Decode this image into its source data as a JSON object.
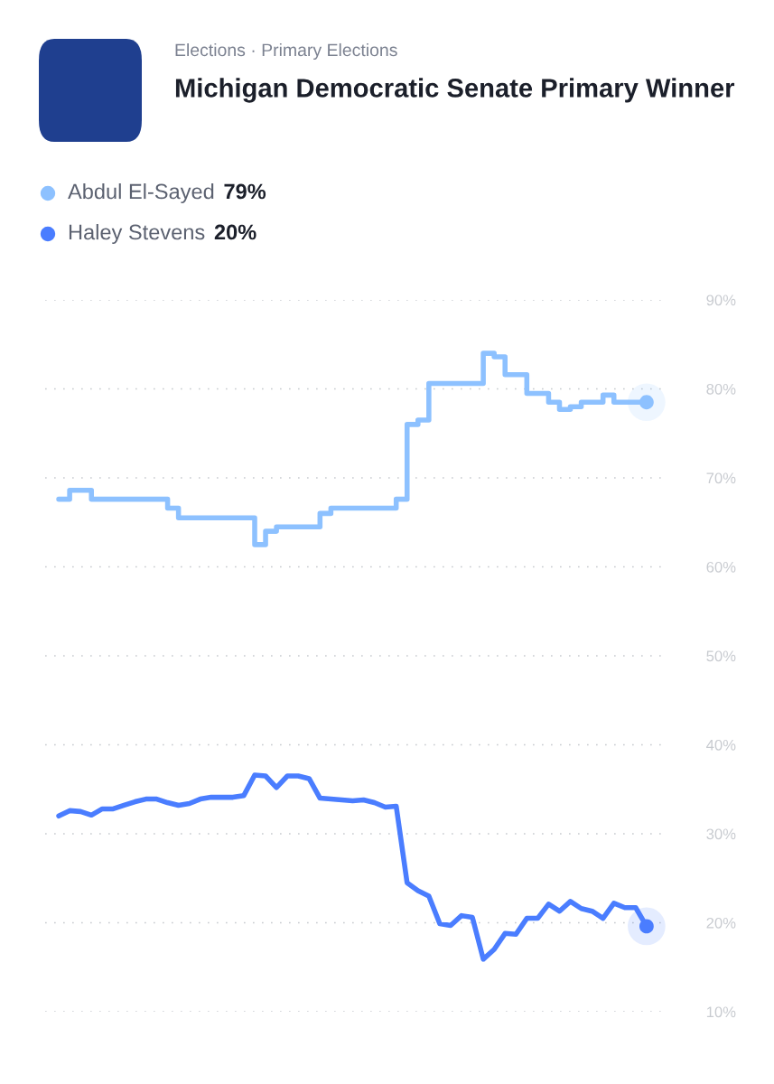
{
  "chart_data": {
    "type": "line",
    "title": "Michigan Democratic Senate Primary Winner",
    "subtitle": "Elections · Primary Elections",
    "categories": [
      null,
      null,
      null,
      null,
      null,
      null,
      null,
      null,
      null,
      null,
      null,
      null,
      null,
      null,
      null,
      null,
      null,
      null,
      null,
      null,
      null,
      null,
      null,
      null,
      null,
      null,
      null,
      null,
      null,
      null,
      null,
      null,
      null,
      null,
      null,
      null,
      null,
      null,
      null,
      null,
      null,
      null,
      null,
      null,
      null,
      null,
      null,
      null,
      null,
      null,
      null,
      null,
      null,
      null,
      null
    ],
    "series": [
      {
        "name": "Abdul El-Sayed",
        "type": "step",
        "color": "#8dc1ff",
        "values": [
          67.6,
          68.6,
          68.6,
          67.6,
          67.6,
          67.6,
          67.6,
          67.6,
          67.6,
          67.6,
          66.6,
          65.5,
          65.5,
          65.5,
          65.5,
          65.5,
          65.5,
          65.5,
          62.5,
          64.0,
          64.5,
          64.5,
          64.5,
          64.5,
          66.0,
          66.6,
          66.6,
          66.6,
          66.6,
          66.6,
          66.6,
          67.6,
          76.0,
          76.5,
          80.6,
          80.6,
          80.6,
          80.6,
          80.6,
          84.0,
          83.6,
          81.6,
          81.6,
          79.5,
          79.5,
          78.5,
          77.7,
          78.0,
          78.5,
          78.5,
          79.3,
          78.5,
          78.5,
          78.5,
          78.5
        ]
      },
      {
        "name": "Haley Stevens",
        "color": "#4a7dff",
        "values": [
          32.0,
          32.6,
          32.5,
          32.1,
          32.8,
          32.8,
          33.2,
          33.6,
          33.9,
          33.9,
          33.5,
          33.2,
          33.4,
          33.9,
          34.1,
          34.1,
          34.1,
          34.3,
          36.6,
          36.5,
          35.2,
          36.5,
          36.5,
          36.2,
          34.0,
          33.9,
          33.8,
          33.7,
          33.8,
          33.5,
          33.0,
          33.1,
          24.5,
          23.6,
          23.0,
          19.9,
          19.7,
          20.8,
          20.6,
          15.9,
          17.0,
          18.8,
          18.7,
          20.5,
          20.5,
          22.1,
          21.3,
          22.4,
          21.6,
          21.3,
          20.5,
          22.2,
          21.7,
          21.7,
          19.6
        ]
      }
    ],
    "annotations": [
      "79%",
      "20%"
    ],
    "ylim": [
      10,
      90
    ],
    "yticks": [
      {
        "value": 10,
        "label": "10%"
      },
      {
        "value": 20,
        "label": "20%"
      },
      {
        "value": 30,
        "label": "30%"
      },
      {
        "value": 40,
        "label": "40%"
      },
      {
        "value": 50,
        "label": "50%"
      },
      {
        "value": 60,
        "label": "60%"
      },
      {
        "value": 70,
        "label": "70%"
      },
      {
        "value": 80,
        "label": "80%"
      },
      {
        "value": 90,
        "label": "90%"
      }
    ],
    "grid": "y",
    "legend": "top left",
    "tick_labels": "y",
    "line_style": "solid"
  }
}
